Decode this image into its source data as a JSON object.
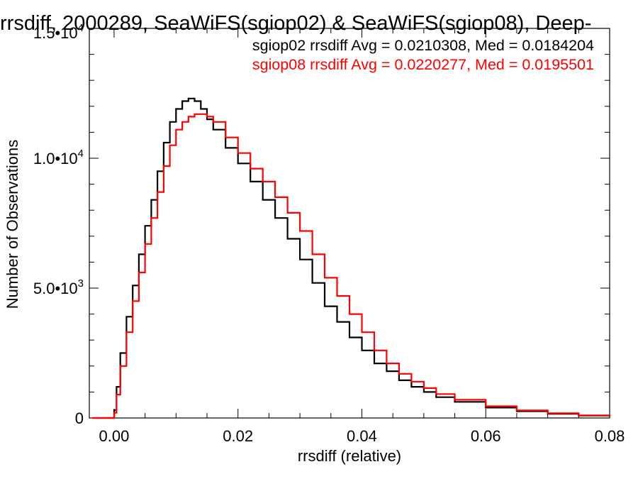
{
  "chart_data": {
    "type": "line",
    "title": "rrsdiff, 2000289, SeaWiFS(sgiop02) & SeaWiFS(sgiop08), Deep-",
    "xlabel": "rrsdiff (relative)",
    "ylabel": "Number of Observations",
    "xlim": [
      -0.004,
      0.08
    ],
    "ylim": [
      0,
      15000
    ],
    "x_ticks": [
      {
        "value": 0.0,
        "label": "0.00"
      },
      {
        "value": 0.02,
        "label": "0.02"
      },
      {
        "value": 0.04,
        "label": "0.04"
      },
      {
        "value": 0.06,
        "label": "0.06"
      },
      {
        "value": 0.08,
        "label": "0.08"
      }
    ],
    "y_ticks": [
      {
        "value": 0,
        "mantissa": "0",
        "exponent": ""
      },
      {
        "value": 5000,
        "mantissa": "5.0•10",
        "exponent": "3"
      },
      {
        "value": 10000,
        "mantissa": "1.0•10",
        "exponent": "4"
      },
      {
        "value": 15000,
        "mantissa": "1.5•10",
        "exponent": "4"
      }
    ],
    "grid": false,
    "legend_placement": "top-right",
    "annotations": [
      {
        "text": "sgiop02 rrsdiff Avg = 0.0210308, Med = 0.0184204",
        "color": "#000000"
      },
      {
        "text": "sgiop08 rrsdiff Avg = 0.0220277, Med = 0.0195501",
        "color": "#ff0000"
      }
    ],
    "series": [
      {
        "color": "#000000",
        "x": [
          -0.0035,
          -0.001,
          0.0,
          0.0004,
          0.001,
          0.002,
          0.003,
          0.004,
          0.005,
          0.006,
          0.007,
          0.008,
          0.009,
          0.01,
          0.011,
          0.012,
          0.013,
          0.014,
          0.015,
          0.016,
          0.018,
          0.02,
          0.022,
          0.024,
          0.026,
          0.028,
          0.03,
          0.032,
          0.034,
          0.036,
          0.038,
          0.04,
          0.042,
          0.044,
          0.046,
          0.048,
          0.05,
          0.052,
          0.055,
          0.06,
          0.065,
          0.07,
          0.075,
          0.08
        ],
        "y": [
          0,
          0,
          300,
          1200,
          2500,
          3900,
          5100,
          6300,
          7400,
          8400,
          9500,
          10600,
          11400,
          11900,
          12200,
          12300,
          12200,
          11900,
          11500,
          11100,
          10400,
          9800,
          9100,
          8400,
          7700,
          6900,
          6100,
          5200,
          4300,
          3700,
          3100,
          2600,
          2100,
          1800,
          1450,
          1200,
          1000,
          800,
          620,
          400,
          260,
          160,
          90,
          60
        ]
      },
      {
        "color": "#ff0000",
        "x": [
          -0.0035,
          -0.001,
          0.0,
          0.0004,
          0.001,
          0.002,
          0.003,
          0.004,
          0.005,
          0.006,
          0.007,
          0.008,
          0.009,
          0.01,
          0.011,
          0.012,
          0.013,
          0.014,
          0.015,
          0.016,
          0.018,
          0.02,
          0.022,
          0.024,
          0.026,
          0.028,
          0.03,
          0.032,
          0.034,
          0.036,
          0.038,
          0.04,
          0.042,
          0.044,
          0.046,
          0.048,
          0.05,
          0.052,
          0.055,
          0.06,
          0.065,
          0.07,
          0.075,
          0.08
        ],
        "y": [
          0,
          0,
          200,
          900,
          2000,
          3300,
          4500,
          5600,
          6700,
          7700,
          8700,
          9700,
          10500,
          11100,
          11400,
          11600,
          11700,
          11700,
          11600,
          11400,
          10800,
          10200,
          9600,
          9100,
          8500,
          7900,
          7200,
          6300,
          5400,
          4700,
          4000,
          3300,
          2600,
          2100,
          1700,
          1400,
          1150,
          920,
          700,
          450,
          290,
          180,
          100,
          70
        ]
      }
    ]
  }
}
